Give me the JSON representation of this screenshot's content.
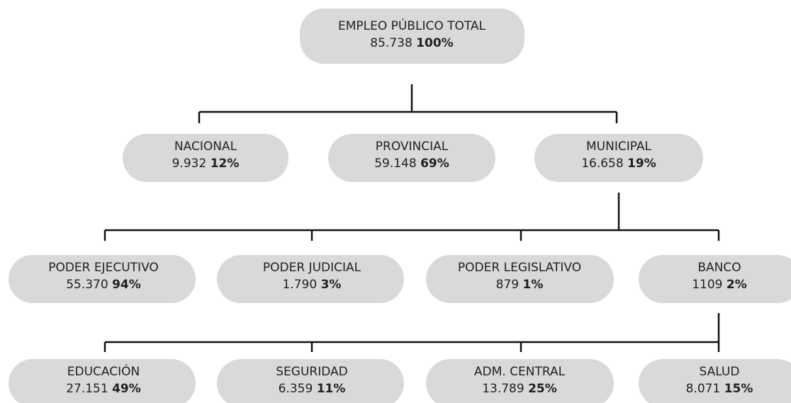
{
  "nodes": [
    {
      "label": "EMPLEO PÚBLICO TOTAL",
      "value": "85.738",
      "percent": "100%"
    },
    {
      "label": "NACIONAL",
      "value": "9.932",
      "percent": "12%"
    },
    {
      "label": "PROVINCIAL",
      "value": "59.148",
      "percent": "69%"
    },
    {
      "label": "MUNICIPAL",
      "value": "16.658",
      "percent": "19%"
    },
    {
      "label": "PODER EJECUTIVO",
      "value": "55.370",
      "percent": "94%"
    },
    {
      "label": "PODER JUDICIAL",
      "value": "1.790",
      "percent": "3%"
    },
    {
      "label": "PODER LEGISLATIVO",
      "value": "879",
      "percent": "1%"
    },
    {
      "label": "BANCO",
      "value": "1109",
      "percent": "2%"
    },
    {
      "label": "EDUCACIÓN",
      "value": "27.151",
      "percent": "49%"
    },
    {
      "label": "SEGURIDAD",
      "value": "6.359",
      "percent": "11%"
    },
    {
      "label": "ADM. CENTRAL",
      "value": "13.789",
      "percent": "25%"
    },
    {
      "label": "SALUD",
      "value": "8.071",
      "percent": "15%"
    }
  ]
}
